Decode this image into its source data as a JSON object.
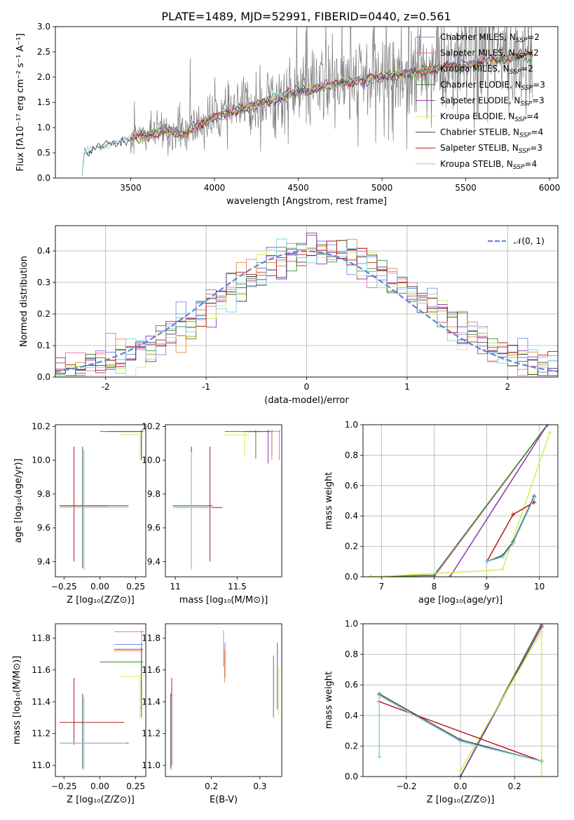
{
  "figure": {
    "title": "PLATE=1489, MJD=52991, FIBERID=0440, z=0.561"
  },
  "colors": {
    "Chabrier MILES": "#6f8fe0",
    "Salpeter MILES": "#e773b6",
    "Kroupa MILES": "#e8893a",
    "Chabrier ELODIE": "#3a8a2e",
    "Salpeter ELODIE": "#8e35b0",
    "Kroupa ELODIE": "#d2ef56",
    "Chabrier STELIB": "#404040",
    "Salpeter STELIB": "#b41a1a",
    "Kroupa STELIB": "#7fd0e0",
    "data": "#7a7a7a",
    "gauss": "#5b86d6"
  },
  "chart_data": [
    {
      "id": "spectrum",
      "type": "line",
      "title": "PLATE=1489, MJD=52991, FIBERID=0440, z=0.561",
      "xlabel": "wavelength [Angstrom, rest frame]",
      "ylabel": "Flux [f_λ 10^-17 erg cm^-2 s^-1 A^-1]",
      "xlim": [
        3050,
        6050
      ],
      "ylim": [
        0,
        3.0
      ],
      "xticks": [
        3500,
        4000,
        4500,
        5000,
        5500,
        6000
      ],
      "yticks": [
        0.0,
        0.5,
        1.0,
        1.5,
        2.0,
        2.5,
        3.0
      ],
      "grid": false,
      "legend_position": "upper-right",
      "series": [
        {
          "name": "Chabrier MILES, N_SSP=2"
        },
        {
          "name": "Salpeter MILES, N_SSP=2"
        },
        {
          "name": "Kroupa MILES, N_SSP=2"
        },
        {
          "name": "Chabrier ELODIE, N_SSP=3"
        },
        {
          "name": "Salpeter ELODIE, N_SSP=3"
        },
        {
          "name": "Kroupa ELODIE, N_SSP=4"
        },
        {
          "name": "Chabrier STELIB, N_SSP=4"
        },
        {
          "name": "Salpeter STELIB, N_SSP=3"
        },
        {
          "name": "Kroupa STELIB, N_SSP=4"
        }
      ],
      "continuum": {
        "x": [
          3200,
          3300,
          3400,
          3500,
          3600,
          3700,
          3800,
          3900,
          4000,
          4100,
          4200,
          4300,
          4400,
          4500,
          4600,
          4700,
          4800,
          4900,
          5000,
          5100,
          5200,
          5300,
          5400,
          5500,
          5600,
          5700,
          5800,
          5900
        ],
        "y": [
          0.45,
          0.6,
          0.7,
          0.78,
          0.85,
          0.95,
          0.85,
          1.05,
          1.2,
          1.3,
          1.4,
          1.5,
          1.6,
          1.7,
          1.78,
          1.85,
          1.9,
          1.95,
          2.0,
          2.05,
          2.1,
          2.15,
          2.2,
          2.25,
          2.3,
          2.35,
          2.4,
          2.45
        ]
      }
    },
    {
      "id": "residuals",
      "type": "line",
      "xlabel": "(data-model)/error",
      "ylabel": "Normed distribution",
      "xlim": [
        -2.5,
        2.5
      ],
      "ylim": [
        0,
        0.48
      ],
      "xticks": [
        -2,
        -1,
        0,
        1,
        2
      ],
      "yticks": [
        0.0,
        0.1,
        0.2,
        0.3,
        0.4
      ],
      "grid": true,
      "legend": [
        "𝒩(0, 1)"
      ],
      "legend_position": "upper-right"
    },
    {
      "id": "age_vs_Z",
      "type": "scatter",
      "xlabel": "Z [log10(Z/Z⊙)]",
      "ylabel": "age [log10(age/yr)]",
      "xlim": [
        -0.31,
        0.32
      ],
      "ylim": [
        9.31,
        10.21
      ],
      "xticks": [
        -0.25,
        0.0,
        0.25
      ],
      "xticklabels": [
        "−0.25",
        "0.00",
        "0.25"
      ],
      "yticks": [
        9.4,
        9.6,
        9.8,
        10.0,
        10.2
      ],
      "grid": false
    },
    {
      "id": "age_vs_mass",
      "type": "scatter",
      "xlabel": "mass [log10(M/M⊙)]",
      "ylabel": "",
      "xlim": [
        10.92,
        11.86
      ],
      "ylim": [
        9.31,
        10.21
      ],
      "xticks": [
        11.0,
        11.5
      ],
      "yticks": [
        9.4,
        9.6,
        9.8,
        10.0,
        10.2
      ],
      "grid": false
    },
    {
      "id": "weight_vs_age",
      "type": "line",
      "xlabel": "age [log10(age/yr)]",
      "ylabel": "mass weight",
      "xlim": [
        6.65,
        10.35
      ],
      "ylim": [
        0,
        1.0
      ],
      "xticks": [
        7,
        8,
        9,
        10
      ],
      "yticks": [
        0.0,
        0.2,
        0.4,
        0.6,
        0.8,
        1.0
      ],
      "grid": true
    },
    {
      "id": "mass_vs_Z",
      "type": "scatter",
      "xlabel": "Z [log10(Z/Z⊙)]",
      "ylabel": "mass [log10(M/M⊙)]",
      "xlim": [
        -0.31,
        0.32
      ],
      "ylim": [
        10.93,
        11.89
      ],
      "xticks": [
        -0.25,
        0.0,
        0.25
      ],
      "xticklabels": [
        "−0.25",
        "0.00",
        "0.25"
      ],
      "yticks": [
        11.0,
        11.2,
        11.4,
        11.6,
        11.8
      ],
      "grid": false
    },
    {
      "id": "mass_vs_ebv",
      "type": "scatter",
      "xlabel": "E(B-V)",
      "ylabel": "",
      "xlim": [
        0.105,
        0.345
      ],
      "ylim": [
        10.93,
        11.89
      ],
      "xticks": [
        0.2,
        0.3
      ],
      "yticks": [
        11.0,
        11.2,
        11.4,
        11.6,
        11.8
      ],
      "grid": false
    },
    {
      "id": "weight_vs_Z",
      "type": "line",
      "xlabel": "Z [log10(Z/Z⊙)]",
      "ylabel": "mass weight",
      "xlim": [
        -0.36,
        0.36
      ],
      "ylim": [
        0,
        1.0
      ],
      "xticks": [
        -0.2,
        0.0,
        0.2
      ],
      "xticklabels": [
        "−0.2",
        "0.0",
        "0.2"
      ],
      "yticks": [
        0.0,
        0.2,
        0.4,
        0.6,
        0.8,
        1.0
      ],
      "grid": true
    }
  ]
}
